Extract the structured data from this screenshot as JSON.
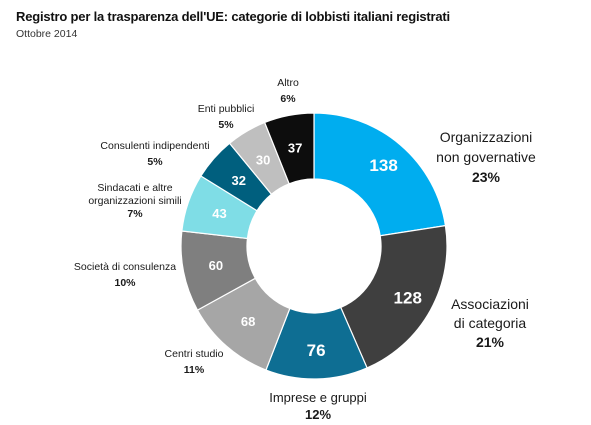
{
  "header": {
    "title": "Registro per la trasparenza dell'UE: categorie di lobbisti italiani registrati",
    "subtitle": "Ottobre 2014"
  },
  "chart_data": {
    "type": "pie",
    "title": "Registro per la trasparenza dell'UE: categorie di lobbisti italiani registrati",
    "subtitle": "Ottobre 2014",
    "slices": [
      {
        "label": "Organizzazioni non governative",
        "value": 138,
        "percent": "23%",
        "color": "#00adef"
      },
      {
        "label": "Associazioni di categoria",
        "value": 128,
        "percent": "21%",
        "color": "#3f3f3f"
      },
      {
        "label": "Imprese e gruppi",
        "value": 76,
        "percent": "12%",
        "color": "#0e6e93"
      },
      {
        "label": "Centri studio",
        "value": 68,
        "percent": "11%",
        "color": "#a6a6a6"
      },
      {
        "label": "Società di consulenza",
        "value": 60,
        "percent": "10%",
        "color": "#7f7f7f"
      },
      {
        "label": "Sindacati e altre organizzazioni simili",
        "value": 43,
        "percent": "7%",
        "color": "#7fdde6"
      },
      {
        "label": "Consulenti indipendenti",
        "value": 32,
        "percent": "5%",
        "color": "#005f7e"
      },
      {
        "label": "Enti pubblici",
        "value": 30,
        "percent": "5%",
        "color": "#bfbfbf"
      },
      {
        "label": "Altro",
        "value": 37,
        "percent": "6%",
        "color": "#0d0d0d"
      }
    ]
  }
}
